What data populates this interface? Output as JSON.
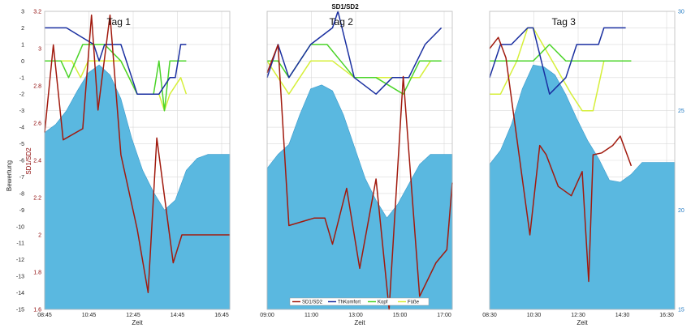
{
  "chart_data": {
    "type": "line",
    "title": "SD1/SD2",
    "xlabel": "Zeit",
    "ylabel_bewertung": "Bewertung",
    "ylabel_sd": "SD1/SD2",
    "y_bewertung": {
      "ticks": [
        3,
        2,
        1,
        0,
        -1,
        -2,
        -3,
        -4,
        -5,
        -6,
        -7,
        -8,
        -9,
        -10,
        -11,
        -12,
        -13,
        -14,
        -15
      ],
      "range": [
        -15,
        3
      ]
    },
    "y_sd": {
      "ticks": [
        3.2,
        3,
        2.8,
        2.6,
        2.4,
        2.2,
        2,
        1.8,
        1.6
      ],
      "range": [
        1.6,
        3.2
      ]
    },
    "y_right": {
      "ticks": [
        30,
        25,
        20,
        15
      ],
      "range": [
        15,
        30
      ]
    },
    "colors": {
      "sd": "#a11a0e",
      "thkomfort": "#1a2fa0",
      "kopf": "#4cd42a",
      "fusse": "#d6ef3a",
      "area": "#5ab8e0"
    },
    "legend": {
      "placement": "bottom-center",
      "entries": [
        "SD1/SD2",
        "ThKomfort",
        "Kopf",
        "Füße"
      ]
    },
    "grid": true,
    "panels": [
      {
        "label": "Tag 1",
        "xticks": [
          "08:45",
          "10:45",
          "12:45",
          "14:45",
          "16:45"
        ],
        "x_range": [
          0,
          17
        ],
        "sd": [
          [
            0,
            2.55
          ],
          [
            0.8,
            3.02
          ],
          [
            1.7,
            2.51
          ],
          [
            3.5,
            2.57
          ],
          [
            4.3,
            3.18
          ],
          [
            4.9,
            2.67
          ],
          [
            6,
            3.18
          ],
          [
            7,
            2.43
          ],
          [
            8.5,
            2.03
          ],
          [
            9.5,
            1.69
          ],
          [
            10.3,
            2.52
          ],
          [
            11.8,
            1.85
          ],
          [
            12.6,
            2.0
          ],
          [
            17,
            2.0
          ]
        ],
        "thkomfort": [
          [
            0,
            2
          ],
          [
            2,
            2
          ],
          [
            4.5,
            1
          ],
          [
            5,
            0
          ],
          [
            5.5,
            1
          ],
          [
            7,
            1
          ],
          [
            8.5,
            -2
          ],
          [
            10.5,
            -2
          ],
          [
            11.5,
            -1
          ],
          [
            12,
            -1
          ],
          [
            12.5,
            1
          ],
          [
            13,
            1
          ]
        ],
        "kopf": [
          [
            0,
            0
          ],
          [
            1.5,
            0
          ],
          [
            2.2,
            -1
          ],
          [
            3.5,
            1
          ],
          [
            5.5,
            1
          ],
          [
            7,
            0
          ],
          [
            8.5,
            -2
          ],
          [
            10,
            -2
          ],
          [
            10.5,
            0
          ],
          [
            11,
            -3
          ],
          [
            11.5,
            0
          ],
          [
            13,
            0
          ]
        ],
        "fusse": [
          [
            0,
            0
          ],
          [
            2.5,
            0
          ],
          [
            3.3,
            -1
          ],
          [
            4,
            0
          ],
          [
            7,
            0
          ],
          [
            8.5,
            -2
          ],
          [
            10.5,
            -2
          ],
          [
            11,
            -3
          ],
          [
            11.5,
            -2
          ],
          [
            12.5,
            -1
          ],
          [
            13,
            -2
          ]
        ],
        "area": [
          [
            0,
            23.9
          ],
          [
            1,
            24.3
          ],
          [
            2,
            25.0
          ],
          [
            3,
            26.0
          ],
          [
            4,
            26.9
          ],
          [
            5,
            27.3
          ],
          [
            6,
            26.8
          ],
          [
            7,
            25.6
          ],
          [
            8,
            23.6
          ],
          [
            9,
            22.0
          ],
          [
            10,
            20.9
          ],
          [
            11,
            20.0
          ],
          [
            12,
            20.5
          ],
          [
            13,
            22.0
          ],
          [
            14,
            22.6
          ],
          [
            15,
            22.8
          ],
          [
            16,
            22.8
          ],
          [
            17,
            22.8
          ]
        ]
      },
      {
        "label": "Tag 2",
        "xticks": [
          "09:00",
          "11:00",
          "13:00",
          "15:00",
          "17:00"
        ],
        "x_range": [
          0,
          17
        ],
        "sd": [
          [
            0,
            2.87
          ],
          [
            1,
            3.02
          ],
          [
            2,
            2.05
          ],
          [
            4.3,
            2.09
          ],
          [
            5.3,
            2.09
          ],
          [
            6,
            1.95
          ],
          [
            7.3,
            2.25
          ],
          [
            8.5,
            1.82
          ],
          [
            10,
            2.3
          ],
          [
            11.2,
            1.6
          ],
          [
            12.5,
            2.85
          ],
          [
            14,
            1.67
          ],
          [
            15.5,
            1.85
          ],
          [
            16.5,
            1.92
          ],
          [
            17,
            2.28
          ]
        ],
        "thkomfort": [
          [
            0,
            -1
          ],
          [
            1,
            1
          ],
          [
            2,
            -1
          ],
          [
            4,
            1
          ],
          [
            6,
            2
          ],
          [
            6.5,
            3
          ],
          [
            8,
            -1
          ],
          [
            10,
            -2
          ],
          [
            11.5,
            -1
          ],
          [
            13,
            -1
          ],
          [
            14.5,
            1
          ],
          [
            16,
            2
          ]
        ],
        "kopf": [
          [
            0,
            0
          ],
          [
            1,
            0
          ],
          [
            2,
            -1
          ],
          [
            4,
            1
          ],
          [
            5.5,
            1
          ],
          [
            8,
            -1
          ],
          [
            10,
            -1
          ],
          [
            12.5,
            -2
          ],
          [
            14,
            0
          ],
          [
            16,
            0
          ]
        ],
        "fusse": [
          [
            0,
            0
          ],
          [
            2,
            -2
          ],
          [
            4,
            0
          ],
          [
            6,
            0
          ],
          [
            8,
            -1
          ],
          [
            14,
            -1
          ],
          [
            15,
            0
          ],
          [
            16,
            0
          ]
        ],
        "area": [
          [
            0,
            22.1
          ],
          [
            1,
            22.8
          ],
          [
            2,
            23.3
          ],
          [
            3,
            24.8
          ],
          [
            4,
            26.1
          ],
          [
            5,
            26.3
          ],
          [
            6,
            26.0
          ],
          [
            7,
            24.8
          ],
          [
            8,
            23.2
          ],
          [
            9,
            21.6
          ],
          [
            10,
            20.5
          ],
          [
            11,
            19.6
          ],
          [
            12,
            20.3
          ],
          [
            13,
            21.3
          ],
          [
            14,
            22.3
          ],
          [
            15,
            22.8
          ],
          [
            16,
            22.8
          ],
          [
            17,
            22.8
          ]
        ]
      },
      {
        "label": "Tag 3",
        "xticks": [
          "08:30",
          "10:30",
          "12:30",
          "14:30",
          "16:30"
        ],
        "x_range": [
          0,
          17
        ],
        "sd": [
          [
            0,
            3.0
          ],
          [
            0.8,
            3.06
          ],
          [
            1.5,
            2.95
          ],
          [
            3.7,
            2.0
          ],
          [
            4.6,
            2.48
          ],
          [
            5.2,
            2.43
          ],
          [
            6.3,
            2.26
          ],
          [
            7.5,
            2.21
          ],
          [
            8.5,
            2.34
          ],
          [
            9.1,
            1.75
          ],
          [
            9.5,
            2.43
          ],
          [
            10.3,
            2.44
          ],
          [
            11.3,
            2.48
          ],
          [
            12,
            2.53
          ],
          [
            13,
            2.37
          ]
        ],
        "thkomfort": [
          [
            0,
            -1
          ],
          [
            1,
            1
          ],
          [
            2,
            1
          ],
          [
            3.5,
            2
          ],
          [
            4,
            2
          ],
          [
            5.5,
            -2
          ],
          [
            7,
            -1
          ],
          [
            8,
            1
          ],
          [
            9.5,
            1
          ],
          [
            10,
            1
          ],
          [
            10.5,
            2
          ],
          [
            11,
            2
          ],
          [
            12.5,
            2
          ]
        ],
        "kopf": [
          [
            0,
            0
          ],
          [
            2.5,
            0
          ],
          [
            4,
            0
          ],
          [
            5.5,
            1
          ],
          [
            7,
            0
          ],
          [
            10.5,
            0
          ],
          [
            13,
            0
          ]
        ],
        "fusse": [
          [
            0,
            -2
          ],
          [
            1,
            -2
          ],
          [
            2.5,
            0
          ],
          [
            3.5,
            2
          ],
          [
            4,
            2
          ],
          [
            7.5,
            -2
          ],
          [
            8.5,
            -3
          ],
          [
            9.5,
            -3
          ],
          [
            10.5,
            0
          ],
          [
            13,
            0
          ]
        ],
        "area": [
          [
            0,
            22.3
          ],
          [
            1,
            23.0
          ],
          [
            2,
            24.3
          ],
          [
            3,
            26.1
          ],
          [
            4,
            27.3
          ],
          [
            5,
            27.2
          ],
          [
            6,
            26.8
          ],
          [
            7,
            25.8
          ],
          [
            8,
            24.6
          ],
          [
            9,
            23.5
          ],
          [
            10,
            22.6
          ],
          [
            11,
            21.5
          ],
          [
            12,
            21.4
          ],
          [
            13,
            21.8
          ],
          [
            14,
            22.4
          ],
          [
            15,
            22.4
          ],
          [
            16,
            22.4
          ],
          [
            17,
            22.4
          ]
        ]
      }
    ]
  }
}
